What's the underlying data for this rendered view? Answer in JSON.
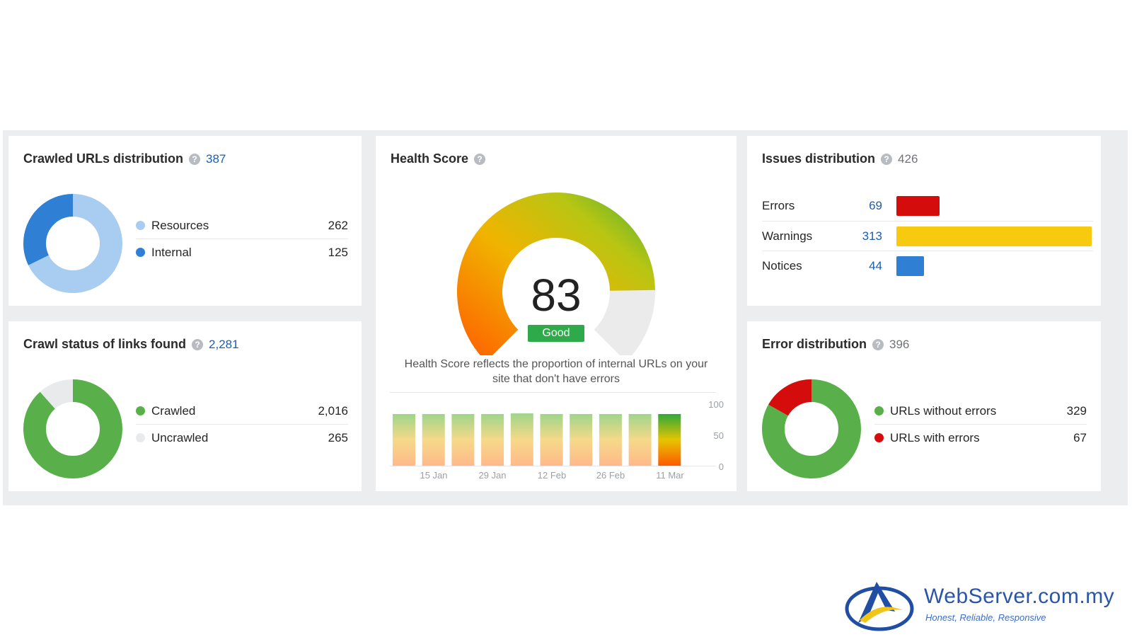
{
  "crawled_urls": {
    "title": "Crawled URLs distribution",
    "total": "387",
    "legend": [
      {
        "label": "Resources",
        "value": "262",
        "color": "#a9cdf0"
      },
      {
        "label": "Internal",
        "value": "125",
        "color": "#2f7fd4"
      }
    ]
  },
  "crawl_status": {
    "title": "Crawl status of links found",
    "total": "2,281",
    "legend": [
      {
        "label": "Crawled",
        "value": "2,016",
        "color": "#59b04b"
      },
      {
        "label": "Uncrawled",
        "value": "265",
        "color": "#e8eaec"
      }
    ]
  },
  "health": {
    "title": "Health Score",
    "score": "83",
    "score_value": 83,
    "rating": "Good",
    "description_line1": "Health Score reflects the proportion of internal URLs on your",
    "description_line2": "site that don't have errors",
    "chart_data": {
      "type": "bar",
      "x_ticks": [
        "15 Jan",
        "29 Jan",
        "12 Feb",
        "26 Feb",
        "11 Mar"
      ],
      "y_ticks": [
        "100",
        "50",
        "0"
      ],
      "ylim": [
        0,
        100
      ],
      "values": [
        83,
        83,
        83,
        83,
        84,
        83,
        83,
        83,
        83,
        83
      ],
      "highlight_index": 9
    }
  },
  "issues": {
    "title": "Issues distribution",
    "total": "426",
    "rows": [
      {
        "label": "Errors",
        "value": "69",
        "num": 69,
        "color": "#d50c0c"
      },
      {
        "label": "Warnings",
        "value": "313",
        "num": 313,
        "color": "#f7c90f"
      },
      {
        "label": "Notices",
        "value": "44",
        "num": 44,
        "color": "#2f7fd4"
      }
    ]
  },
  "errors": {
    "title": "Error distribution",
    "total": "396",
    "legend": [
      {
        "label": "URLs without errors",
        "value": "329",
        "color": "#59b04b"
      },
      {
        "label": "URLs with errors",
        "value": "67",
        "color": "#d50c0c"
      }
    ]
  },
  "brand": {
    "name": "WebServer.com.my",
    "tagline": "Honest, Reliable, Responsive"
  }
}
